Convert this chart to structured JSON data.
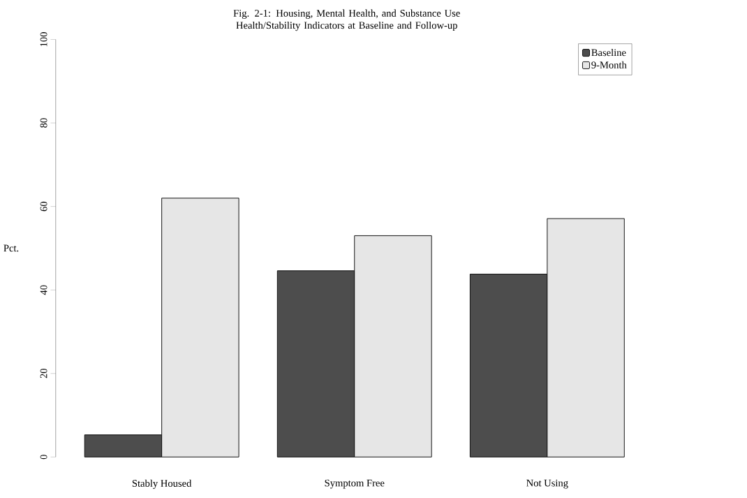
{
  "chart_data": {
    "type": "bar",
    "title": "Fig. 2-1: Housing, Mental Health, and Substance Use Health/Stability Indicators at Baseline and Follow-up",
    "ylabel": "Pct.",
    "categories": [
      "Stably Housed",
      "Symptom Free",
      "Not Using"
    ],
    "series": [
      {
        "name": "Baseline",
        "color": "#4d4d4d",
        "values": [
          5.3,
          44.6,
          43.8
        ]
      },
      {
        "name": "9-Month",
        "color": "#e6e6e6",
        "values": [
          62.0,
          53.0,
          57.1
        ]
      }
    ],
    "ylim": [
      0,
      100
    ],
    "yticks": [
      0,
      20,
      40,
      60,
      80,
      100
    ],
    "legend": "top right"
  }
}
